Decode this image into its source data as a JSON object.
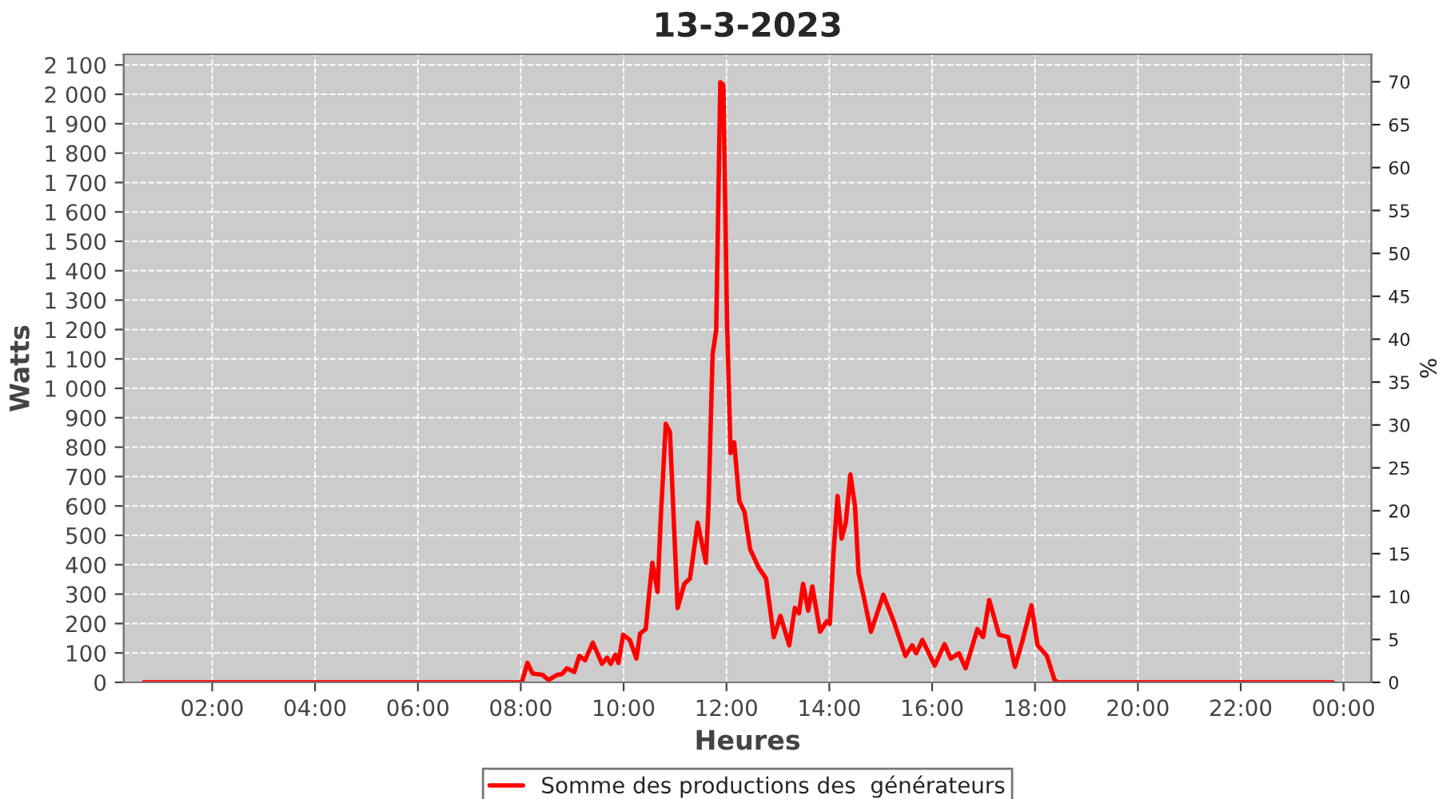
{
  "chart_data": {
    "type": "line",
    "title": "13-3-2023",
    "xlabel": "Heures",
    "ylabel": "Watts",
    "y2label": "%",
    "xlim": [
      0.28,
      24.54
    ],
    "ylim": [
      0,
      2136
    ],
    "y2lim": [
      0,
      73.2
    ],
    "xticks": [
      {
        "value": 2,
        "label": "02:00"
      },
      {
        "value": 4,
        "label": "04:00"
      },
      {
        "value": 6,
        "label": "06:00"
      },
      {
        "value": 8,
        "label": "08:00"
      },
      {
        "value": 10,
        "label": "10:00"
      },
      {
        "value": 12,
        "label": "12:00"
      },
      {
        "value": 14,
        "label": "14:00"
      },
      {
        "value": 16,
        "label": "16:00"
      },
      {
        "value": 18,
        "label": "18:00"
      },
      {
        "value": 20,
        "label": "20:00"
      },
      {
        "value": 22,
        "label": "22:00"
      },
      {
        "value": 24,
        "label": "00:00"
      }
    ],
    "yticks": [
      0,
      100,
      200,
      300,
      400,
      500,
      600,
      700,
      800,
      900,
      {
        "value": 1000,
        "label": "1 000"
      },
      {
        "value": 1100,
        "label": "1 100"
      },
      {
        "value": 1200,
        "label": "1 200"
      },
      {
        "value": 1300,
        "label": "1 300"
      },
      {
        "value": 1400,
        "label": "1 400"
      },
      {
        "value": 1500,
        "label": "1 500"
      },
      {
        "value": 1600,
        "label": "1 600"
      },
      {
        "value": 1700,
        "label": "1 700"
      },
      {
        "value": 1800,
        "label": "1 800"
      },
      {
        "value": 1900,
        "label": "1 900"
      },
      {
        "value": 2000,
        "label": "2 000"
      },
      {
        "value": 2100,
        "label": "2 100"
      }
    ],
    "y2ticks": [
      0,
      5,
      10,
      15,
      20,
      25,
      30,
      35,
      40,
      45,
      50,
      55,
      60,
      65,
      70
    ],
    "grid": true,
    "legend": "bottom",
    "marker": "none",
    "line_style": "solid",
    "series": [
      {
        "name": "Somme des productions des  générateurs",
        "color": "#ff0000",
        "x": [
          0.67,
          8.02,
          8.13,
          8.23,
          8.42,
          8.54,
          8.7,
          8.8,
          8.9,
          9.04,
          9.14,
          9.25,
          9.4,
          9.58,
          9.68,
          9.75,
          9.84,
          9.9,
          9.99,
          10.12,
          10.25,
          10.32,
          10.43,
          10.51,
          10.56,
          10.66,
          10.72,
          10.82,
          10.9,
          11.05,
          11.18,
          11.29,
          11.44,
          11.6,
          11.65,
          11.73,
          11.8,
          11.88,
          11.94,
          12.01,
          12.08,
          12.15,
          12.25,
          12.35,
          12.46,
          12.63,
          12.77,
          12.92,
          13.05,
          13.22,
          13.33,
          13.41,
          13.49,
          13.59,
          13.67,
          13.82,
          13.95,
          14.01,
          14.08,
          14.16,
          14.24,
          14.32,
          14.41,
          14.5,
          14.57,
          14.67,
          14.81,
          15.05,
          15.25,
          15.48,
          15.61,
          15.69,
          15.81,
          16.05,
          16.24,
          16.36,
          16.52,
          16.65,
          16.88,
          16.99,
          17.11,
          17.3,
          17.48,
          17.61,
          17.76,
          17.93,
          18.05,
          18.23,
          18.38,
          18.44,
          23.79
        ],
        "values": [
          0,
          0,
          66,
          30,
          26,
          8,
          25,
          28,
          48,
          35,
          90,
          75,
          135,
          63,
          84,
          63,
          94,
          66,
          162,
          144,
          81,
          166,
          181,
          326,
          407,
          308,
          553,
          879,
          852,
          253,
          335,
          353,
          543,
          407,
          598,
          1115,
          1197,
          2041,
          2032,
          1233,
          780,
          816,
          616,
          580,
          453,
          389,
          353,
          154,
          226,
          126,
          253,
          235,
          335,
          244,
          326,
          172,
          208,
          199,
          435,
          634,
          489,
          543,
          707,
          598,
          371,
          290,
          172,
          298,
          208,
          90,
          126,
          99,
          144,
          57,
          130,
          81,
          99,
          48,
          181,
          154,
          280,
          162,
          154,
          53,
          144,
          262,
          126,
          90,
          8,
          0,
          0
        ]
      }
    ]
  }
}
